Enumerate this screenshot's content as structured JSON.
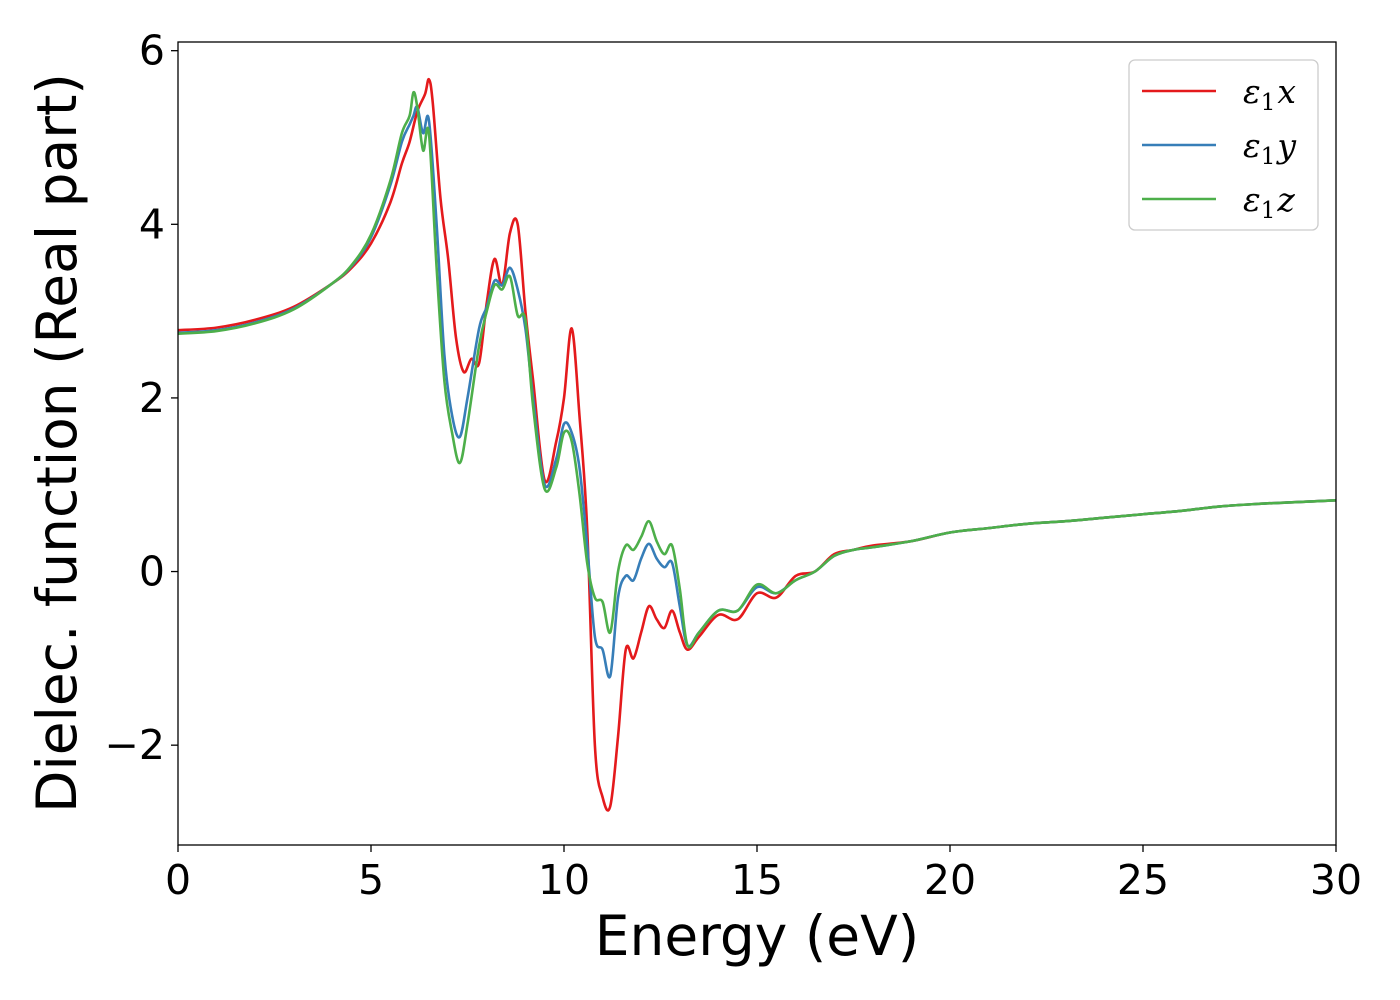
{
  "chart_data": {
    "type": "line",
    "title": "",
    "xlabel": "Energy (eV)",
    "ylabel": "Dielec. function (Real part)",
    "xlim": [
      0,
      30
    ],
    "ylim": [
      -3.15,
      6.1
    ],
    "xticks": [
      {
        "value": 0,
        "label": "0"
      },
      {
        "value": 5,
        "label": "5"
      },
      {
        "value": 10,
        "label": "10"
      },
      {
        "value": 15,
        "label": "15"
      },
      {
        "value": 20,
        "label": "20"
      },
      {
        "value": 25,
        "label": "25"
      },
      {
        "value": 30,
        "label": "30"
      }
    ],
    "yticks": [
      {
        "value": -2,
        "label": "−2"
      },
      {
        "value": 0,
        "label": "0"
      },
      {
        "value": 2,
        "label": "2"
      },
      {
        "value": 4,
        "label": "4"
      },
      {
        "value": 6,
        "label": "6"
      }
    ],
    "grid": false,
    "legend_position": "top-right",
    "series": [
      {
        "name": "ε1x",
        "label_main": "ε",
        "label_sub": "1",
        "label_var": "x",
        "color": "#e41a1c",
        "x": [
          0,
          1,
          2,
          3,
          4,
          4.5,
          5,
          5.5,
          5.8,
          6.0,
          6.2,
          6.4,
          6.5,
          6.6,
          6.8,
          7.0,
          7.2,
          7.4,
          7.6,
          7.8,
          8.0,
          8.2,
          8.4,
          8.6,
          8.8,
          9.0,
          9.2,
          9.5,
          9.8,
          10.0,
          10.2,
          10.4,
          10.6,
          10.8,
          11.0,
          11.2,
          11.4,
          11.6,
          11.8,
          12.0,
          12.2,
          12.4,
          12.6,
          12.8,
          13.0,
          13.2,
          13.5,
          14.0,
          14.5,
          15.0,
          15.5,
          16.0,
          16.5,
          17.0,
          17.5,
          18.0,
          19.0,
          20.0,
          21.0,
          22.0,
          23.0,
          24.0,
          25.0,
          26.0,
          27.0,
          28.0,
          29.0,
          30.0
        ],
        "values": [
          2.78,
          2.81,
          2.9,
          3.05,
          3.32,
          3.5,
          3.78,
          4.25,
          4.7,
          4.95,
          5.3,
          5.5,
          5.67,
          5.4,
          4.3,
          3.6,
          2.7,
          2.3,
          2.45,
          2.4,
          3.1,
          3.6,
          3.3,
          3.9,
          4.0,
          3.0,
          2.2,
          1.05,
          1.5,
          2.0,
          2.8,
          1.8,
          0.5,
          -2.0,
          -2.6,
          -2.7,
          -1.9,
          -0.9,
          -1.0,
          -0.7,
          -0.4,
          -0.55,
          -0.65,
          -0.45,
          -0.7,
          -0.9,
          -0.75,
          -0.5,
          -0.55,
          -0.25,
          -0.3,
          -0.05,
          0.0,
          0.2,
          0.25,
          0.3,
          0.35,
          0.45,
          0.5,
          0.55,
          0.58,
          0.62,
          0.66,
          0.7,
          0.75,
          0.78,
          0.8,
          0.82
        ]
      },
      {
        "name": "ε1y",
        "label_main": "ε",
        "label_sub": "1",
        "label_var": "y",
        "color": "#377eb8",
        "x": [
          0,
          1,
          2,
          3,
          4,
          4.5,
          5,
          5.5,
          5.8,
          6.0,
          6.1,
          6.2,
          6.35,
          6.5,
          6.7,
          6.9,
          7.1,
          7.3,
          7.5,
          7.8,
          8.0,
          8.2,
          8.4,
          8.6,
          8.8,
          9.0,
          9.2,
          9.5,
          9.8,
          10.0,
          10.2,
          10.4,
          10.6,
          10.8,
          11.0,
          11.2,
          11.4,
          11.6,
          11.8,
          12.0,
          12.2,
          12.4,
          12.6,
          12.8,
          13.0,
          13.2,
          13.5,
          14.0,
          14.5,
          15.0,
          15.5,
          16.0,
          16.5,
          17.0,
          17.5,
          18.0,
          19.0,
          20.0,
          21.0,
          22.0,
          23.0,
          24.0,
          25.0,
          26.0,
          27.0,
          28.0,
          29.0,
          30.0
        ],
        "values": [
          2.75,
          2.78,
          2.87,
          3.03,
          3.32,
          3.52,
          3.85,
          4.45,
          4.95,
          5.15,
          5.25,
          5.35,
          5.05,
          5.2,
          4.0,
          2.5,
          1.8,
          1.55,
          2.0,
          2.8,
          3.05,
          3.35,
          3.3,
          3.5,
          3.25,
          2.8,
          2.0,
          1.0,
          1.3,
          1.7,
          1.6,
          1.2,
          0.3,
          -0.75,
          -0.9,
          -1.2,
          -0.3,
          -0.05,
          -0.1,
          0.15,
          0.32,
          0.15,
          0.05,
          0.1,
          -0.4,
          -0.85,
          -0.7,
          -0.45,
          -0.45,
          -0.18,
          -0.25,
          -0.1,
          0.0,
          0.18,
          0.25,
          0.28,
          0.35,
          0.45,
          0.5,
          0.55,
          0.58,
          0.62,
          0.66,
          0.7,
          0.75,
          0.78,
          0.8,
          0.82
        ]
      },
      {
        "name": "ε1z",
        "label_main": "ε",
        "label_sub": "1",
        "label_var": "z",
        "color": "#4daf4a",
        "x": [
          0,
          1,
          2,
          3,
          4,
          4.5,
          5,
          5.5,
          5.8,
          6.0,
          6.1,
          6.2,
          6.35,
          6.5,
          6.7,
          6.9,
          7.1,
          7.3,
          7.5,
          7.8,
          8.0,
          8.2,
          8.4,
          8.6,
          8.8,
          9.0,
          9.2,
          9.5,
          9.8,
          10.0,
          10.2,
          10.4,
          10.6,
          10.8,
          11.0,
          11.2,
          11.4,
          11.6,
          11.8,
          12.0,
          12.2,
          12.4,
          12.6,
          12.8,
          13.0,
          13.2,
          13.5,
          14.0,
          14.5,
          15.0,
          15.5,
          16.0,
          16.5,
          17.0,
          17.5,
          18.0,
          19.0,
          20.0,
          21.0,
          22.0,
          23.0,
          24.0,
          25.0,
          26.0,
          27.0,
          28.0,
          29.0,
          30.0
        ],
        "values": [
          2.74,
          2.77,
          2.86,
          3.02,
          3.32,
          3.53,
          3.88,
          4.5,
          5.05,
          5.25,
          5.52,
          5.35,
          4.85,
          5.05,
          3.5,
          2.2,
          1.6,
          1.25,
          1.7,
          2.6,
          3.0,
          3.3,
          3.25,
          3.4,
          2.95,
          2.9,
          1.9,
          0.95,
          1.2,
          1.6,
          1.5,
          0.9,
          0.1,
          -0.3,
          -0.35,
          -0.7,
          0.0,
          0.3,
          0.25,
          0.4,
          0.58,
          0.35,
          0.2,
          0.3,
          -0.2,
          -0.85,
          -0.7,
          -0.45,
          -0.45,
          -0.15,
          -0.25,
          -0.1,
          0.0,
          0.18,
          0.25,
          0.28,
          0.35,
          0.45,
          0.5,
          0.55,
          0.58,
          0.62,
          0.66,
          0.7,
          0.75,
          0.78,
          0.8,
          0.82
        ]
      }
    ]
  }
}
